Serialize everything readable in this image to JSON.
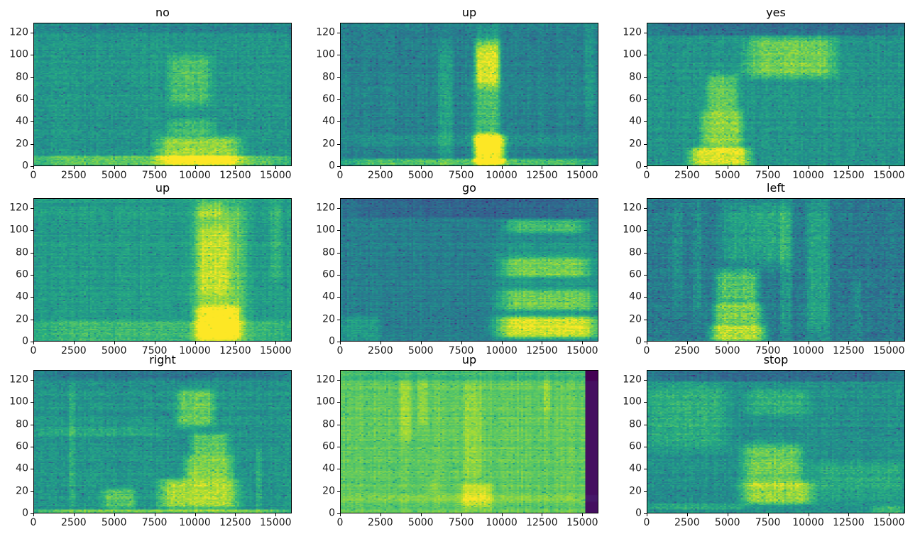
{
  "figure": {
    "kind": "matplotlib-figure",
    "background": "#ffffff",
    "rows": 3,
    "cols": 3
  },
  "chart_data": {
    "type": "heatmap",
    "subtype": "audio-spectrograms",
    "colormap_name": "viridis",
    "colormap": [
      "#440154",
      "#472c7a",
      "#3b518b",
      "#2c718e",
      "#21908c",
      "#27ad81",
      "#5cc863",
      "#aadc32",
      "#fde725"
    ],
    "axes": {
      "x_range": [
        0,
        16000
      ],
      "y_range": [
        0,
        129
      ],
      "x_ticks": [
        0,
        2500,
        5000,
        7500,
        10000,
        12500,
        15000
      ],
      "y_ticks": [
        0,
        20,
        40,
        60,
        80,
        100,
        120
      ],
      "grid": false,
      "legend": "none"
    },
    "subplots": [
      {
        "title": "no",
        "seed": 101,
        "base": 0.53,
        "noise": 0.07,
        "features": [
          {
            "t": "band",
            "x": [
              0,
              16000
            ],
            "y": [
              0,
              9
            ],
            "a": 0.22
          },
          {
            "t": "blob",
            "x": [
              7800,
              12800
            ],
            "y": [
              0,
              26
            ],
            "a": 0.33
          },
          {
            "t": "blob",
            "x": [
              8400,
              11200
            ],
            "y": [
              28,
              42
            ],
            "a": 0.16
          },
          {
            "t": "blob",
            "x": [
              8400,
              11000
            ],
            "y": [
              55,
              100
            ],
            "a": 0.18
          },
          {
            "t": "band",
            "x": [
              0,
              16000
            ],
            "y": [
              120,
              130
            ],
            "a": -0.07
          }
        ]
      },
      {
        "title": "up",
        "seed": 202,
        "base": 0.44,
        "noise": 0.07,
        "features": [
          {
            "t": "band",
            "x": [
              0,
              16000
            ],
            "y": [
              0,
              6
            ],
            "a": 0.28
          },
          {
            "t": "blob",
            "x": [
              8300,
              9900
            ],
            "y": [
              0,
              118
            ],
            "a": 0.25
          },
          {
            "t": "blob",
            "x": [
              8300,
              10300
            ],
            "y": [
              2,
              28
            ],
            "a": 0.42
          },
          {
            "t": "blob",
            "x": [
              8400,
              9900
            ],
            "y": [
              72,
              112
            ],
            "a": 0.25
          },
          {
            "t": "blob",
            "x": [
              6100,
              7000
            ],
            "y": [
              0,
              112
            ],
            "a": 0.13
          },
          {
            "t": "blob",
            "x": [
              15200,
              15800
            ],
            "y": [
              40,
              128
            ],
            "a": 0.1
          },
          {
            "t": "band",
            "x": [
              0,
              16000
            ],
            "y": [
              18,
              27
            ],
            "a": 0.07
          }
        ]
      },
      {
        "title": "yes",
        "seed": 303,
        "base": 0.52,
        "noise": 0.07,
        "features": [
          {
            "t": "band",
            "x": [
              0,
              16000
            ],
            "y": [
              118,
              130
            ],
            "a": -0.16
          },
          {
            "t": "blob",
            "x": [
              2700,
              6300
            ],
            "y": [
              0,
              16
            ],
            "a": 0.42
          },
          {
            "t": "blob",
            "x": [
              3400,
              5900
            ],
            "y": [
              16,
              50
            ],
            "a": 0.3
          },
          {
            "t": "blob",
            "x": [
              3700,
              5600
            ],
            "y": [
              50,
              82
            ],
            "a": 0.22
          },
          {
            "t": "blob",
            "x": [
              6300,
              11600
            ],
            "y": [
              80,
              116
            ],
            "a": 0.27
          }
        ]
      },
      {
        "title": "up",
        "seed": 404,
        "base": 0.55,
        "noise": 0.06,
        "features": [
          {
            "t": "band",
            "x": [
              0,
              16000
            ],
            "y": [
              0,
              18
            ],
            "a": 0.13
          },
          {
            "t": "blob",
            "x": [
              10000,
              13200
            ],
            "y": [
              0,
              128
            ],
            "a": 0.22
          },
          {
            "t": "blob",
            "x": [
              10100,
              12800
            ],
            "y": [
              0,
              32
            ],
            "a": 0.3
          },
          {
            "t": "blob",
            "x": [
              10200,
              12200
            ],
            "y": [
              40,
              105
            ],
            "a": 0.15
          },
          {
            "t": "blob",
            "x": [
              10200,
              11800
            ],
            "y": [
              112,
              126
            ],
            "a": 0.12
          },
          {
            "t": "blob",
            "x": [
              14700,
              15400
            ],
            "y": [
              55,
              128
            ],
            "a": 0.09
          }
        ]
      },
      {
        "title": "go",
        "seed": 505,
        "base": 0.43,
        "noise": 0.06,
        "features": [
          {
            "t": "band",
            "x": [
              0,
              16000
            ],
            "y": [
              112,
              130
            ],
            "a": -0.1
          },
          {
            "t": "blob",
            "x": [
              9600,
              16000
            ],
            "y": [
              0,
              95
            ],
            "a": 0.1
          },
          {
            "t": "blob",
            "x": [
              9800,
              16000
            ],
            "y": [
              3,
              22
            ],
            "a": 0.42
          },
          {
            "t": "blob",
            "x": [
              10000,
              16000
            ],
            "y": [
              28,
              46
            ],
            "a": 0.25
          },
          {
            "t": "blob",
            "x": [
              10100,
              15500
            ],
            "y": [
              58,
              76
            ],
            "a": 0.26
          },
          {
            "t": "blob",
            "x": [
              10300,
              15200
            ],
            "y": [
              98,
              110
            ],
            "a": 0.24
          },
          {
            "t": "blob",
            "x": [
              0,
              2400
            ],
            "y": [
              0,
              22
            ],
            "a": 0.12
          }
        ]
      },
      {
        "title": "left",
        "seed": 606,
        "base": 0.41,
        "noise": 0.08,
        "features": [
          {
            "t": "blob",
            "x": [
              4000,
              7300
            ],
            "y": [
              0,
              14
            ],
            "a": 0.48
          },
          {
            "t": "blob",
            "x": [
              4200,
              7100
            ],
            "y": [
              14,
              34
            ],
            "a": 0.38
          },
          {
            "t": "blob",
            "x": [
              4300,
              6900
            ],
            "y": [
              34,
              64
            ],
            "a": 0.32
          },
          {
            "t": "blob",
            "x": [
              4700,
              8900
            ],
            "y": [
              68,
              126
            ],
            "a": 0.17
          },
          {
            "t": "blob",
            "x": [
              8300,
              9000
            ],
            "y": [
              0,
              128
            ],
            "a": 0.12
          },
          {
            "t": "blob",
            "x": [
              9900,
              11300
            ],
            "y": [
              0,
              128
            ],
            "a": 0.16
          },
          {
            "t": "blob",
            "x": [
              1600,
              2200
            ],
            "y": [
              28,
              126
            ],
            "a": 0.1
          },
          {
            "t": "blob",
            "x": [
              2800,
              3400
            ],
            "y": [
              20,
              126
            ],
            "a": 0.08
          },
          {
            "t": "blob",
            "x": [
              12800,
              13400
            ],
            "y": [
              0,
              60
            ],
            "a": 0.07
          }
        ]
      },
      {
        "title": "right",
        "seed": 707,
        "base": 0.52,
        "noise": 0.07,
        "features": [
          {
            "t": "band",
            "x": [
              0,
              16000
            ],
            "y": [
              120,
              130
            ],
            "a": -0.11
          },
          {
            "t": "band",
            "x": [
              0,
              16000
            ],
            "y": [
              0,
              3
            ],
            "a": 0.27
          },
          {
            "t": "blob",
            "x": [
              7900,
              12600
            ],
            "y": [
              4,
              30
            ],
            "a": 0.36
          },
          {
            "t": "blob",
            "x": [
              9400,
              12300
            ],
            "y": [
              30,
              52
            ],
            "a": 0.28
          },
          {
            "t": "blob",
            "x": [
              9800,
              12100
            ],
            "y": [
              52,
              72
            ],
            "a": 0.22
          },
          {
            "t": "blob",
            "x": [
              8900,
              11200
            ],
            "y": [
              78,
              112
            ],
            "a": 0.24
          },
          {
            "t": "blob",
            "x": [
              4300,
              6300
            ],
            "y": [
              4,
              22
            ],
            "a": 0.22
          },
          {
            "t": "blob",
            "x": [
              2150,
              2550
            ],
            "y": [
              0,
              120
            ],
            "a": 0.11
          },
          {
            "t": "band",
            "x": [
              0,
              8000
            ],
            "y": [
              70,
              78
            ],
            "a": 0.09
          },
          {
            "t": "blob",
            "x": [
              13800,
              14200
            ],
            "y": [
              0,
              60
            ],
            "a": 0.09
          }
        ]
      },
      {
        "title": "up",
        "seed": 808,
        "base": 0.76,
        "noise": 0.045,
        "features": [
          {
            "t": "set",
            "x": [
              15280,
              16000
            ],
            "y": [
              0,
              130
            ],
            "v": 0.04
          },
          {
            "t": "blob",
            "x": [
              7500,
              9400
            ],
            "y": [
              4,
              26
            ],
            "a": 0.15
          },
          {
            "t": "blob",
            "x": [
              3700,
              4400
            ],
            "y": [
              65,
              122
            ],
            "a": 0.09
          },
          {
            "t": "blob",
            "x": [
              4800,
              5400
            ],
            "y": [
              80,
              122
            ],
            "a": 0.08
          },
          {
            "t": "blob",
            "x": [
              5500,
              6000
            ],
            "y": [
              18,
              30
            ],
            "a": 0.06
          },
          {
            "t": "blob",
            "x": [
              7700,
              8800
            ],
            "y": [
              28,
              118
            ],
            "a": 0.07
          },
          {
            "t": "blob",
            "x": [
              12600,
              13100
            ],
            "y": [
              90,
              122
            ],
            "a": 0.07
          },
          {
            "t": "band",
            "x": [
              0,
              16000
            ],
            "y": [
              120,
              130
            ],
            "a": -0.08
          },
          {
            "t": "band",
            "x": [
              0,
              16000
            ],
            "y": [
              10,
              16
            ],
            "a": 0.05
          }
        ]
      },
      {
        "title": "stop",
        "seed": 909,
        "base": 0.5,
        "noise": 0.07,
        "features": [
          {
            "t": "band",
            "x": [
              0,
              16000
            ],
            "y": [
              119,
              130
            ],
            "a": -0.14
          },
          {
            "t": "blob",
            "x": [
              5900,
              10200
            ],
            "y": [
              8,
              28
            ],
            "a": 0.36
          },
          {
            "t": "blob",
            "x": [
              6000,
              9600
            ],
            "y": [
              28,
              62
            ],
            "a": 0.27
          },
          {
            "t": "blob",
            "x": [
              6200,
              10000
            ],
            "y": [
              88,
              112
            ],
            "a": 0.13
          },
          {
            "t": "blob",
            "x": [
              0,
              4900
            ],
            "y": [
              58,
              116
            ],
            "a": 0.13
          },
          {
            "t": "band",
            "x": [
              0,
              6200
            ],
            "y": [
              3,
              8
            ],
            "a": 0.1
          },
          {
            "t": "blob",
            "x": [
              10200,
              16000
            ],
            "y": [
              10,
              45
            ],
            "a": 0.1
          },
          {
            "t": "blob",
            "x": [
              14000,
              16000
            ],
            "y": [
              0,
              6
            ],
            "a": 0.15
          }
        ]
      }
    ]
  }
}
